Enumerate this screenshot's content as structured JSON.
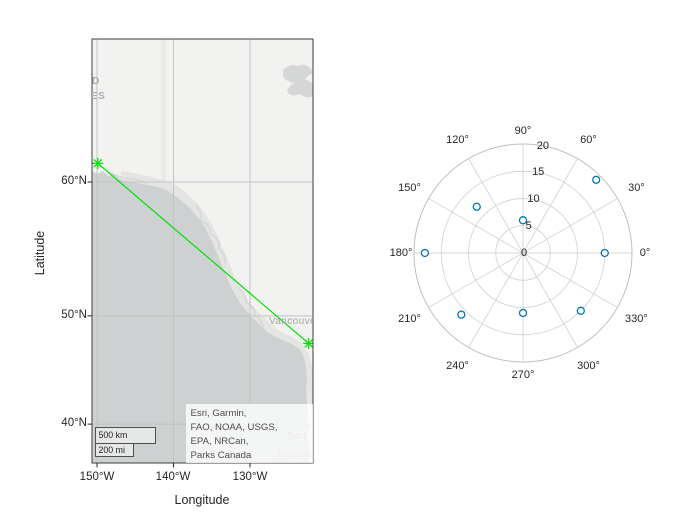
{
  "window": {
    "background": "#ffffff"
  },
  "map": {
    "xlabel": "Longitude",
    "ylabel": "Latitude",
    "xticks": [
      {
        "label": "150°W",
        "lon": -150
      },
      {
        "label": "140°W",
        "lon": -140
      },
      {
        "label": "130°W",
        "lon": -130
      }
    ],
    "yticks": [
      {
        "label": "60°N",
        "lat": 60
      },
      {
        "label": "50°N",
        "lat": 50
      },
      {
        "label": "40°N",
        "lat": 40
      }
    ],
    "scalebar": {
      "km_label": "500 km",
      "mi_label": "200 mi"
    },
    "attribution_lines": [
      "Esri, Garmin,",
      "FAO, NOAA, USGS,",
      "EPA, NRCan,",
      "Parks Canada"
    ],
    "basemap_labels": {
      "left_fragment_1": "D",
      "left_fragment_2": "ES",
      "vancouver": "Vancouver",
      "san": "San",
      "francisco": "Francisco"
    },
    "colors": {
      "ocean": "#cdd1d1",
      "land": "#f2f2f0",
      "coastal_band": "#e4e5e3",
      "fjord": "#d8dad9",
      "lake": "#d5d7d7",
      "border_stripe": "#e9e9e7",
      "grid": "#c2c4c4",
      "frame": "#3c3c3c",
      "route": "#00e005",
      "tick_text": "#262626"
    }
  },
  "polar": {
    "colors": {
      "grid": "#d4d4d4",
      "outline": "#bdbdbd",
      "marker": "#0072bd",
      "text": "#262626"
    }
  },
  "chart_data": [
    {
      "type": "line",
      "subtype": "geographic-route",
      "title": "",
      "xlabel": "Longitude",
      "ylabel": "Latitude",
      "xtick_labels": [
        "150°W",
        "140°W",
        "130°W"
      ],
      "ytick_labels": [
        "40°N",
        "50°N",
        "60°N"
      ],
      "lon_range": [
        -150.65,
        -121.76
      ],
      "lat_range": [
        36.9,
        68.1
      ],
      "grid": true,
      "series": [
        {
          "name": "route",
          "marker": "asterisk",
          "color": "#00e005",
          "points_latlon": [
            [
              61.2,
              -149.9
            ],
            [
              47.62,
              -122.33
            ]
          ]
        }
      ],
      "annotations": [
        "Esri, Garmin, FAO, NOAA, USGS, EPA, NRCan, Parks Canada",
        "500 km",
        "200 mi"
      ]
    },
    {
      "type": "scatter",
      "subtype": "polar",
      "title": "",
      "theta_deg": [
        45,
        90,
        135,
        180,
        225,
        270,
        315,
        360
      ],
      "r": [
        19,
        6,
        12,
        18,
        16,
        11,
        15,
        15
      ],
      "rlim": [
        0,
        20
      ],
      "rticks": [
        0,
        5,
        10,
        15,
        20
      ],
      "theta_ticks_deg": [
        0,
        30,
        60,
        90,
        120,
        150,
        180,
        210,
        240,
        270,
        300,
        330
      ],
      "theta_tick_labels": [
        "0°",
        "30°",
        "60°",
        "90°",
        "120°",
        "150°",
        "180°",
        "210°",
        "240°",
        "270°",
        "300°",
        "330°"
      ],
      "marker": "o",
      "marker_color": "#0072bd",
      "grid": true,
      "legend": null
    }
  ]
}
